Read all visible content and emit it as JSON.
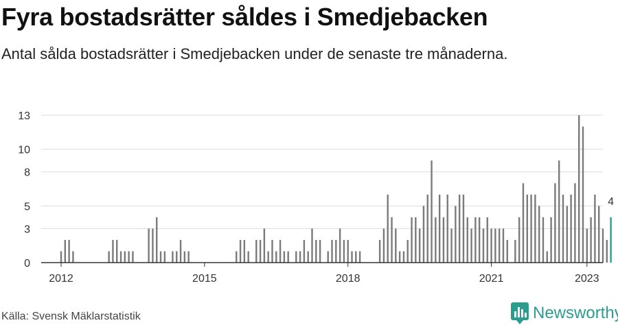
{
  "title": "Fyra bostadsrätter såldes i Smedjebacken",
  "subtitle": "Antal sålda bostadsrätter i Smedjebacken under de senaste tre månaderna.",
  "source": "Källa: Svensk Mäklarstatistik",
  "brand": "Newsworthy",
  "colors": {
    "bar": "#7a7a7a",
    "highlight": "#2a9d8f",
    "brand": "#2a9d8f"
  },
  "chart_data": {
    "type": "bar",
    "x_axis": {
      "start": "2011-08",
      "end": "2023-05",
      "ticks": [
        "2012",
        "2015",
        "2018",
        "2021",
        "2023"
      ]
    },
    "y_axis": {
      "min": 0,
      "max": 13,
      "ticks": [
        0,
        3,
        5,
        8,
        10,
        13
      ]
    },
    "grid": true,
    "highlight_label": "4",
    "series": [
      {
        "start_month": "2011-11",
        "values": [
          0,
          0,
          1,
          2,
          2,
          1,
          0,
          0,
          0,
          0,
          0,
          0,
          0,
          0,
          1,
          2,
          2,
          1,
          1,
          1,
          1,
          0,
          0,
          0,
          3,
          3,
          4,
          1,
          1,
          0,
          1,
          1,
          2,
          1,
          1,
          0,
          0,
          0,
          0,
          0,
          0,
          0,
          0,
          0,
          0,
          0,
          1,
          2,
          2,
          1,
          0,
          2,
          2,
          3,
          1,
          2,
          1,
          2,
          1,
          1,
          0,
          1,
          1,
          2,
          1,
          3,
          2,
          2,
          0,
          1,
          2,
          2,
          3,
          2,
          2,
          1,
          1,
          1,
          0,
          0,
          0,
          0,
          2,
          3,
          6,
          4,
          3,
          1,
          1,
          2,
          4,
          4,
          3,
          5,
          6,
          9,
          4,
          6,
          4,
          6,
          3,
          5,
          6,
          6,
          4,
          3,
          4,
          4,
          3,
          4,
          3,
          3,
          3,
          3,
          2,
          0,
          2,
          4,
          7,
          6,
          6,
          6,
          5,
          4,
          1,
          4,
          7,
          9,
          6,
          5,
          6,
          7,
          13,
          12,
          3,
          4,
          6,
          5,
          3,
          2,
          4
        ]
      }
    ]
  }
}
